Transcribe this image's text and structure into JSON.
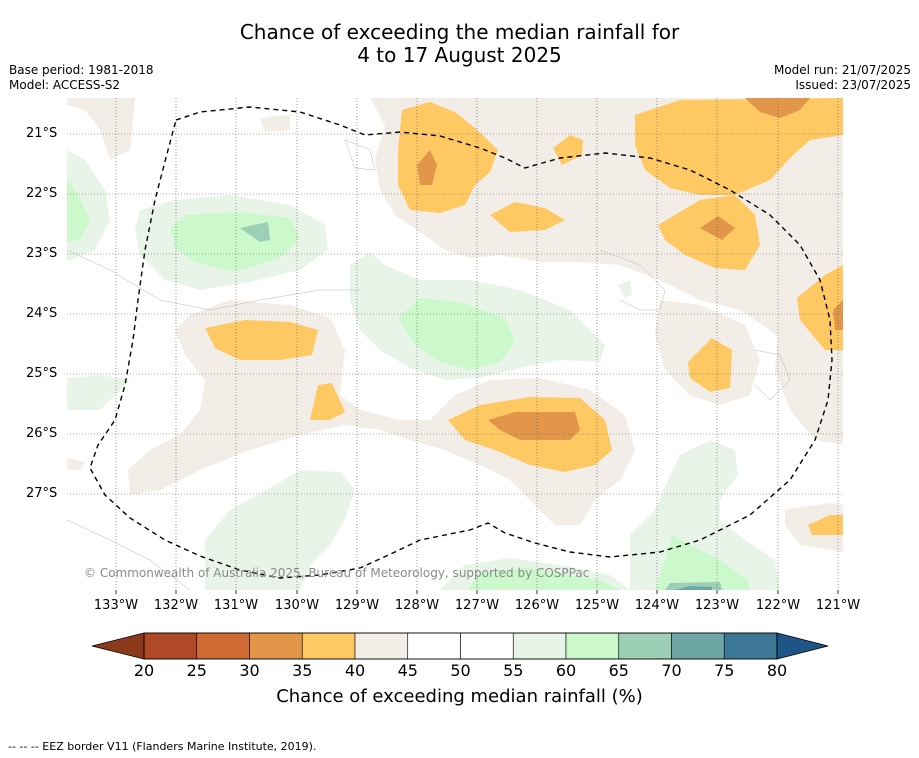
{
  "title": {
    "line1": "Chance of exceeding the median rainfall for",
    "line2": "4 to 17 August 2025"
  },
  "info_left": {
    "base_period": "Base period: 1981-2018",
    "model": "Model: ACCESS-S2"
  },
  "info_right": {
    "model_run": "Model run: 21/07/2025",
    "issued": "Issued: 23/07/2025"
  },
  "copyright": "© Commonwealth of Australia 2025, Bureau of Meteorology, supported by COSPPac",
  "map": {
    "lon_ticks": [
      "133°W",
      "132°W",
      "131°W",
      "130°W",
      "129°W",
      "128°W",
      "127°W",
      "126°W",
      "125°W",
      "124°W",
      "123°W",
      "122°W",
      "121°W"
    ],
    "lat_ticks": [
      "21°S",
      "22°S",
      "23°S",
      "24°S",
      "25°S",
      "26°S",
      "27°S"
    ]
  },
  "colorbar": {
    "ticks": [
      "20",
      "25",
      "30",
      "35",
      "40",
      "45",
      "50",
      "55",
      "60",
      "65",
      "70",
      "75",
      "80"
    ],
    "colors": [
      "#b04a26",
      "#cf6a34",
      "#e1964a",
      "#fec963",
      "#f2ede6",
      "#ffffff",
      "#ffffff",
      "#e9f4e9",
      "#ccf9cc",
      "#9ccfb6",
      "#6ea5a5",
      "#3e7899"
    ],
    "low_extend_color": "#8c3a1c",
    "high_extend_color": "#1f5486",
    "label": "Chance of exceeding median rainfall (%)"
  },
  "footer": "--  --  -- EEZ border V11 (Flanders Marine Institute, 2019)."
}
